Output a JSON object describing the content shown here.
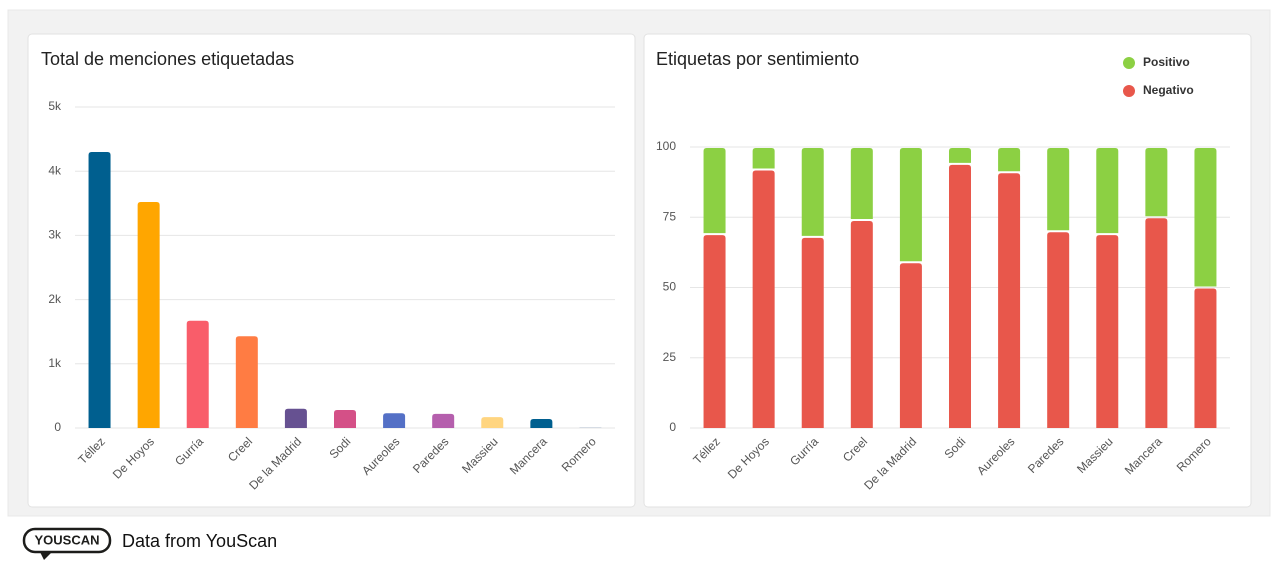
{
  "chart_data": [
    {
      "type": "bar",
      "title": "Total de menciones etiquetadas",
      "categories": [
        "Téllez",
        "De Hoyos",
        "Gurría",
        "Creel",
        "De la Madrid",
        "Sodi",
        "Aureoles",
        "Paredes",
        "Massieu",
        "Mancera",
        "Romero"
      ],
      "values": [
        4300,
        3520,
        1670,
        1430,
        300,
        280,
        230,
        220,
        170,
        140,
        5
      ],
      "colors": [
        "#005f8f",
        "#ffa600",
        "#f95d6a",
        "#ff7c43",
        "#665191",
        "#d45087",
        "#5470c6",
        "#b55fad",
        "#ffd580",
        "#005f8f",
        "#9aa9c0"
      ],
      "ylim": [
        0,
        5000
      ],
      "yticks": [
        0,
        {
          "value": 1000,
          "label": "1k"
        },
        {
          "value": 2000,
          "label": "2k"
        },
        {
          "value": 3000,
          "label": "3k"
        },
        {
          "value": 4000,
          "label": "4k"
        },
        {
          "value": 5000,
          "label": "5k"
        }
      ],
      "grid": true
    },
    {
      "type": "stacked_bar",
      "title": "Etiquetas por sentimiento",
      "categories": [
        "Téllez",
        "De Hoyos",
        "Gurría",
        "Creel",
        "De la Madrid",
        "Sodi",
        "Aureoles",
        "Paredes",
        "Massieu",
        "Mancera",
        "Romero"
      ],
      "series": [
        {
          "name": "Positivo",
          "color": "#8cd043",
          "values": [
            31,
            8,
            32,
            26,
            41,
            6,
            9,
            30,
            31,
            25,
            50
          ]
        },
        {
          "name": "Negativo",
          "color": "#e8574b",
          "values": [
            69,
            92,
            68,
            74,
            59,
            94,
            91,
            70,
            69,
            75,
            50
          ]
        }
      ],
      "ylim": [
        0,
        100
      ],
      "yticks": [
        0,
        25,
        50,
        75,
        100
      ],
      "grid": true,
      "legend": "top-right"
    }
  ],
  "footer": {
    "logo": "YOUSCAN",
    "text": "Data from YouScan"
  }
}
